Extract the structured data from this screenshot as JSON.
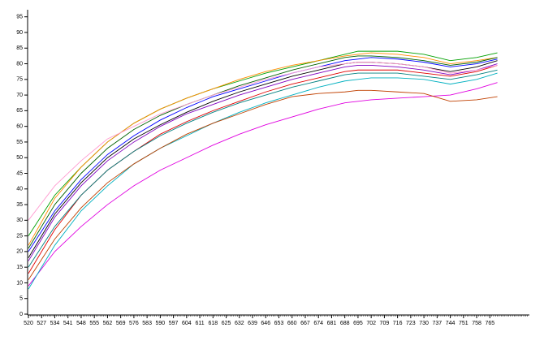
{
  "chart_data": {
    "type": "line",
    "x": [
      520,
      534,
      548,
      562,
      576,
      590,
      604,
      618,
      632,
      646,
      660,
      674,
      688,
      695,
      702,
      716,
      730,
      744,
      758,
      769
    ],
    "xlim": [
      520,
      786
    ],
    "ylim": [
      0,
      97
    ],
    "xticks": [
      520,
      527,
      534,
      541,
      548,
      555,
      562,
      569,
      576,
      583,
      590,
      597,
      604,
      611,
      618,
      625,
      632,
      639,
      646,
      653,
      660,
      667,
      674,
      681,
      688,
      695,
      702,
      709,
      716,
      723,
      730,
      737,
      744,
      751,
      758,
      765
    ],
    "yticks": [
      0,
      5,
      10,
      15,
      20,
      25,
      30,
      35,
      40,
      45,
      50,
      55,
      60,
      65,
      70,
      75,
      80,
      85,
      90,
      95
    ],
    "series": [
      {
        "color": "#00a000",
        "values": [
          25,
          38,
          47,
          55,
          61,
          65.5,
          69,
          72,
          74.5,
          77,
          79,
          81,
          83,
          84,
          84,
          84,
          83,
          81,
          82,
          83.5
        ]
      },
      {
        "color": "#0000ff",
        "values": [
          20,
          33,
          43,
          51,
          57,
          62,
          66,
          69.5,
          72,
          74.5,
          77,
          79,
          81,
          81.5,
          82,
          81.5,
          80.5,
          79,
          80,
          81.5
        ]
      },
      {
        "color": "#e00000",
        "values": [
          13,
          27,
          38,
          46,
          52,
          57.5,
          61.5,
          65,
          68,
          71,
          73.5,
          75.5,
          77.5,
          78,
          78,
          78,
          77,
          76,
          77.5,
          79.5
        ]
      },
      {
        "color": "#e000e0",
        "values": [
          9,
          20,
          28,
          35,
          41,
          46,
          50,
          54,
          57.5,
          60.5,
          63,
          65.5,
          67.5,
          68,
          68.5,
          69,
          69.5,
          70,
          72,
          74
        ]
      },
      {
        "color": "#ff8c00",
        "values": [
          22,
          37,
          47,
          55,
          61,
          65.5,
          69,
          72,
          75,
          77.5,
          79.5,
          81,
          82.5,
          83,
          83.5,
          83,
          82,
          80,
          81,
          82
        ]
      },
      {
        "color": "#00b0c0",
        "values": [
          8,
          22,
          33,
          41,
          48,
          53,
          57,
          61,
          64.5,
          67.5,
          70,
          72.5,
          74.5,
          75,
          75.5,
          75.5,
          75,
          73.5,
          75,
          77
        ]
      },
      {
        "color": "#8000c0",
        "values": [
          17,
          31,
          41,
          49,
          55,
          60,
          64,
          67,
          70,
          72.5,
          75,
          77,
          79,
          79.5,
          79.5,
          79,
          78,
          76.5,
          78,
          80
        ]
      },
      {
        "color": "#000000",
        "values": [
          18,
          32,
          42,
          50,
          56,
          60.5,
          64.5,
          68,
          71,
          73.5,
          76,
          78,
          80,
          80.5,
          80.5,
          80,
          79,
          77.5,
          79,
          81
        ]
      },
      {
        "color": "#c04000",
        "values": [
          11,
          24,
          34,
          42,
          48,
          53,
          57.5,
          61,
          64,
          67,
          69.5,
          70.5,
          71,
          71.5,
          71.5,
          71,
          70.5,
          68,
          68.5,
          69.5
        ]
      },
      {
        "color": "#008080",
        "values": [
          15,
          28,
          38,
          46,
          52,
          57,
          61,
          64.5,
          67.5,
          70,
          72.5,
          74.5,
          76.5,
          77,
          77,
          77,
          76,
          75,
          76.5,
          78
        ]
      },
      {
        "color": "#006000",
        "values": [
          21,
          35,
          45,
          53,
          59,
          63.5,
          67,
          70,
          73,
          75.5,
          78,
          80,
          82,
          82.5,
          82.5,
          82,
          81,
          79.5,
          80.5,
          82
        ]
      },
      {
        "color": "#ff9ad0",
        "values": [
          30,
          41,
          49,
          56,
          60,
          64,
          67,
          70,
          72.5,
          75,
          77,
          79,
          80,
          80.5,
          80.5,
          80,
          79,
          77,
          78,
          79.5
        ]
      }
    ]
  }
}
